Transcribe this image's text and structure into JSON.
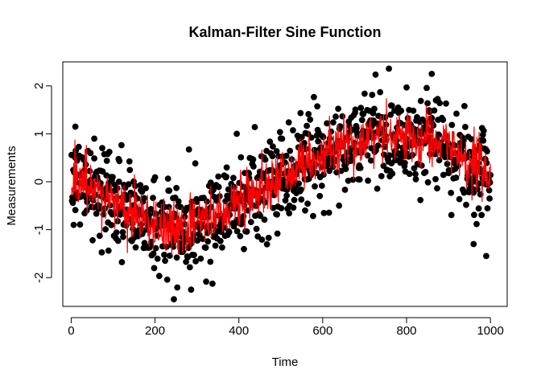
{
  "chart_data": {
    "type": "scatter",
    "title": "Kalman-Filter Sine Function",
    "xlabel": "Time",
    "ylabel": "Measurements",
    "xlim": [
      -20,
      1040
    ],
    "ylim": [
      -2.6,
      2.5
    ],
    "xticks": [
      0,
      200,
      400,
      600,
      800,
      1000
    ],
    "yticks": [
      -2,
      -1,
      0,
      1,
      2
    ],
    "grid": false,
    "legend": "none",
    "n_points": 1000,
    "underlying_signal": "sine",
    "series": [
      {
        "type": "scatter",
        "color": "#000000",
        "marker": "filled-circle",
        "approx_trend": [
          [
            0,
            0.1
          ],
          [
            100,
            -0.4
          ],
          [
            200,
            -0.9
          ],
          [
            250,
            -1.0
          ],
          [
            300,
            -0.9
          ],
          [
            400,
            -0.4
          ],
          [
            500,
            0.1
          ],
          [
            600,
            0.6
          ],
          [
            700,
            0.9
          ],
          [
            800,
            1.0
          ],
          [
            900,
            0.7
          ],
          [
            1000,
            0.1
          ]
        ],
        "noise_sd": 0.5,
        "notable_points": [
          [
            10,
            1.15
          ],
          [
            55,
            0.9
          ],
          [
            245,
            -2.45
          ],
          [
            395,
            1.0
          ],
          [
            860,
            2.25
          ],
          [
            990,
            -1.55
          ],
          [
            960,
            -1.3
          ]
        ]
      },
      {
        "type": "line",
        "color": "#ff0000",
        "approx_trend": [
          [
            0,
            0.1
          ],
          [
            100,
            -0.4
          ],
          [
            200,
            -0.9
          ],
          [
            250,
            -1.0
          ],
          [
            300,
            -0.9
          ],
          [
            400,
            -0.4
          ],
          [
            500,
            0.1
          ],
          [
            600,
            0.6
          ],
          [
            700,
            0.9
          ],
          [
            800,
            1.0
          ],
          [
            900,
            0.7
          ],
          [
            1000,
            0.1
          ]
        ],
        "noise_sd": 0.28
      }
    ]
  }
}
